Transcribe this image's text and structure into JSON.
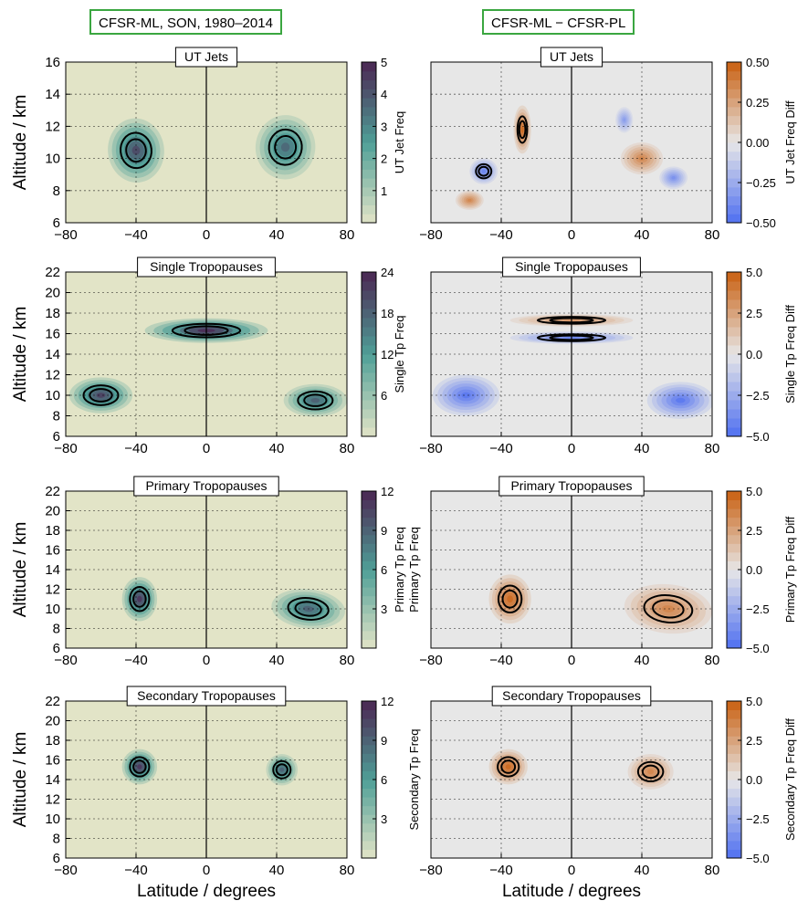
{
  "headers": {
    "left": "CFSR-ML, SON, 1980–2014",
    "right": "CFSR-ML − CFSR-PL"
  },
  "colors": {
    "freq_low": "#e2e4c7",
    "freq_mid": "#4f9f97",
    "freq_high": "#4b2652",
    "diff_negative": "#4f6ff0",
    "diff_zero": "#e7e7e7",
    "diff_positive": "#c95f10",
    "contour": "#000000",
    "header_border": "#3aa640"
  },
  "chart_data": [
    {
      "type": "heatmap",
      "title": "UT Jets",
      "ylabel": "Altitude / km",
      "xlabel": "",
      "colorbar_label": "UT Jet Freq",
      "colormap": "sequential",
      "xlim": [
        -80,
        80
      ],
      "ylim": [
        6,
        16
      ],
      "xticks": [
        -80,
        -40,
        0,
        40,
        80
      ],
      "yticks": [
        6,
        8,
        10,
        12,
        14,
        16
      ],
      "clim": [
        0,
        5
      ],
      "colorbar_ticks": [
        1,
        2,
        3,
        4,
        5
      ],
      "grid": true,
      "features": [
        {
          "lat": -40,
          "alt": 10.5,
          "value": 4.2,
          "lat_extent": 32,
          "alt_extent": 4.0,
          "tilt": 0.1
        },
        {
          "lat": 45,
          "alt": 10.7,
          "value": 3.6,
          "lat_extent": 34,
          "alt_extent": 4.0,
          "tilt": -0.1
        }
      ]
    },
    {
      "type": "heatmap",
      "title": "UT Jets",
      "ylabel": "",
      "xlabel": "",
      "colorbar_label": "UT Jet Freq Diff",
      "colormap": "diverging",
      "xlim": [
        -80,
        80
      ],
      "ylim": [
        6,
        16
      ],
      "xticks": [
        -80,
        -40,
        0,
        40,
        80
      ],
      "yticks": [],
      "clim": [
        -0.5,
        0.5
      ],
      "colorbar_ticks": [
        -0.5,
        -0.25,
        0.0,
        0.25,
        0.5
      ],
      "colorbar_tick_labels": [
        "−0.50",
        "−0.25",
        "0.00",
        "0.25",
        "0.50"
      ],
      "grid": true,
      "features": [
        {
          "lat": -28,
          "alt": 11.8,
          "value": 0.45,
          "lat_extent": 10,
          "alt_extent": 3.0,
          "tilt": 0
        },
        {
          "lat": -50,
          "alt": 9.2,
          "value": -0.4,
          "lat_extent": 16,
          "alt_extent": 1.6,
          "tilt": 0
        },
        {
          "lat": -58,
          "alt": 7.4,
          "value": 0.35,
          "lat_extent": 16,
          "alt_extent": 1.2,
          "tilt": 0
        },
        {
          "lat": 40,
          "alt": 10.0,
          "value": 0.35,
          "lat_extent": 24,
          "alt_extent": 2.0,
          "tilt": 0
        },
        {
          "lat": 58,
          "alt": 8.8,
          "value": -0.35,
          "lat_extent": 16,
          "alt_extent": 1.4,
          "tilt": 0
        },
        {
          "lat": 30,
          "alt": 12.4,
          "value": -0.3,
          "lat_extent": 10,
          "alt_extent": 1.6,
          "tilt": 0
        }
      ]
    },
    {
      "type": "heatmap",
      "title": "Single Tropopauses",
      "ylabel": "Altitude / km",
      "xlabel": "",
      "colorbar_label": "Single Tp Freq",
      "colormap": "sequential",
      "xlim": [
        -80,
        80
      ],
      "ylim": [
        6,
        22
      ],
      "xticks": [
        -80,
        -40,
        0,
        40,
        80
      ],
      "yticks": [
        6,
        8,
        10,
        12,
        14,
        16,
        18,
        20,
        22
      ],
      "clim": [
        0,
        24
      ],
      "colorbar_ticks": [
        6,
        12,
        18,
        24
      ],
      "grid": true,
      "features": [
        {
          "lat": 0,
          "alt": 16.3,
          "value": 23,
          "lat_extent": 70,
          "alt_extent": 2.4,
          "tilt": 0
        },
        {
          "lat": -60,
          "alt": 10.0,
          "value": 21,
          "lat_extent": 36,
          "alt_extent": 3.5,
          "tilt": 0
        },
        {
          "lat": 62,
          "alt": 9.5,
          "value": 18,
          "lat_extent": 36,
          "alt_extent": 3.2,
          "tilt": 0
        }
      ]
    },
    {
      "type": "heatmap",
      "title": "Single Tropopauses",
      "ylabel": "",
      "xlabel": "",
      "colorbar_label": "Single Tp Freq Diff",
      "colormap": "diverging",
      "xlim": [
        -80,
        80
      ],
      "ylim": [
        6,
        22
      ],
      "xticks": [
        -80,
        -40,
        0,
        40,
        80
      ],
      "yticks": [],
      "clim": [
        -5,
        5
      ],
      "colorbar_ticks": [
        -5,
        -2.5,
        0,
        2.5,
        5
      ],
      "colorbar_tick_labels": [
        "−5.0",
        "−2.5",
        "0.0",
        "2.5",
        "5.0"
      ],
      "grid": true,
      "features": [
        {
          "lat": 0,
          "alt": 17.3,
          "value": 3.0,
          "lat_extent": 70,
          "alt_extent": 1.2,
          "tilt": 0
        },
        {
          "lat": 0,
          "alt": 15.6,
          "value": -4.0,
          "lat_extent": 70,
          "alt_extent": 1.2,
          "tilt": 0
        },
        {
          "lat": -60,
          "alt": 10.0,
          "value": -4.5,
          "lat_extent": 38,
          "alt_extent": 4.0,
          "tilt": 0
        },
        {
          "lat": 62,
          "alt": 9.5,
          "value": -4.5,
          "lat_extent": 38,
          "alt_extent": 3.6,
          "tilt": 0
        }
      ]
    },
    {
      "type": "heatmap",
      "title": "Primary Tropopauses",
      "ylabel": "Altitude / km",
      "xlabel": "",
      "colorbar_label": "Primary Tp Freq",
      "colormap": "sequential",
      "xlim": [
        -80,
        80
      ],
      "ylim": [
        6,
        22
      ],
      "xticks": [
        -80,
        -40,
        0,
        40,
        80
      ],
      "yticks": [
        6,
        8,
        10,
        12,
        14,
        16,
        18,
        20,
        22
      ],
      "clim": [
        0,
        12
      ],
      "colorbar_ticks": [
        3,
        6,
        9,
        12
      ],
      "grid": true,
      "features": [
        {
          "lat": -38,
          "alt": 11.0,
          "value": 11,
          "lat_extent": 20,
          "alt_extent": 4.5,
          "tilt": 0
        },
        {
          "lat": 58,
          "alt": 10.0,
          "value": 9,
          "lat_extent": 42,
          "alt_extent": 4.0,
          "tilt": -0.1
        }
      ]
    },
    {
      "type": "heatmap",
      "title": "Primary Tropopauses",
      "ylabel": "Primary Tp Freq",
      "xlabel": "",
      "colorbar_label": "Primary Tp Freq Diff",
      "colormap": "diverging",
      "xlim": [
        -80,
        80
      ],
      "ylim": [
        6,
        22
      ],
      "xticks": [
        -80,
        -40,
        0,
        40,
        80
      ],
      "yticks": [],
      "clim": [
        -5,
        5
      ],
      "colorbar_ticks": [
        -5,
        -2.5,
        0,
        2.5,
        5
      ],
      "colorbar_tick_labels": [
        "−5.0",
        "−2.5",
        "0.0",
        "2.5",
        "5.0"
      ],
      "grid": true,
      "features": [
        {
          "lat": -35,
          "alt": 11.0,
          "value": 4.5,
          "lat_extent": 24,
          "alt_extent": 5.0,
          "tilt": 0
        },
        {
          "lat": 55,
          "alt": 10.0,
          "value": 3.5,
          "lat_extent": 50,
          "alt_extent": 5.0,
          "tilt": -0.1
        }
      ]
    },
    {
      "type": "heatmap",
      "title": "Secondary Tropopauses",
      "ylabel": "Altitude / km",
      "xlabel": "Latitude / degrees",
      "colorbar_label": "",
      "colormap": "sequential",
      "xlim": [
        -80,
        80
      ],
      "ylim": [
        6,
        22
      ],
      "xticks": [
        -80,
        -40,
        0,
        40,
        80
      ],
      "yticks": [
        6,
        8,
        10,
        12,
        14,
        16,
        18,
        20,
        22
      ],
      "clim": [
        0,
        12
      ],
      "colorbar_ticks": [
        3,
        6,
        9,
        12
      ],
      "grid": true,
      "features": [
        {
          "lat": -38,
          "alt": 15.3,
          "value": 11,
          "lat_extent": 20,
          "alt_extent": 3.6,
          "tilt": 0
        },
        {
          "lat": 43,
          "alt": 15.0,
          "value": 9,
          "lat_extent": 18,
          "alt_extent": 3.2,
          "tilt": 0
        }
      ]
    },
    {
      "type": "heatmap",
      "title": "Secondary Tropopauses",
      "ylabel": "Secondary Tp Freq",
      "xlabel": "Latitude / degrees",
      "colorbar_label": "Secondary Tp Freq Diff",
      "colormap": "diverging",
      "xlim": [
        -80,
        80
      ],
      "ylim": [
        6,
        22
      ],
      "xticks": [
        -80,
        -40,
        0,
        40,
        80
      ],
      "yticks": [],
      "clim": [
        -5,
        5
      ],
      "colorbar_ticks": [
        -5,
        -2.5,
        0,
        2.5,
        5
      ],
      "colorbar_tick_labels": [
        "−5.0",
        "−2.5",
        "0.0",
        "2.5",
        "5.0"
      ],
      "grid": true,
      "features": [
        {
          "lat": -36,
          "alt": 15.3,
          "value": 4.5,
          "lat_extent": 22,
          "alt_extent": 3.6,
          "tilt": 0
        },
        {
          "lat": 45,
          "alt": 14.8,
          "value": 3.5,
          "lat_extent": 26,
          "alt_extent": 3.6,
          "tilt": 0
        }
      ]
    }
  ]
}
